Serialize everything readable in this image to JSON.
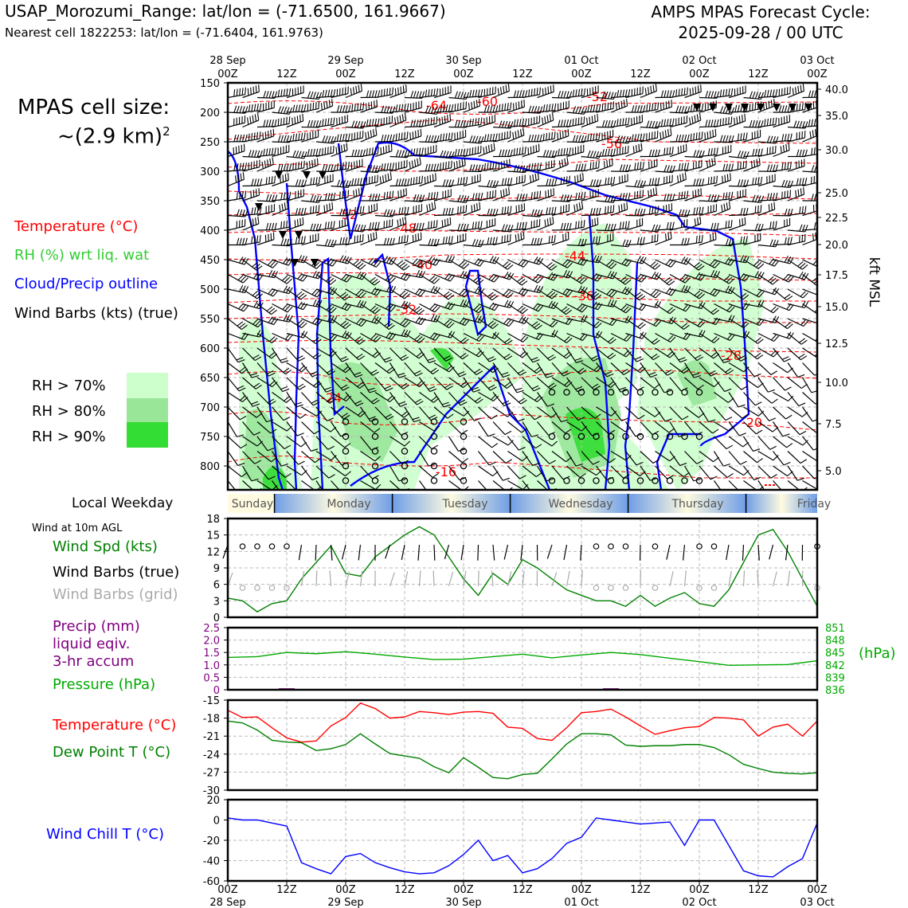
{
  "header": {
    "site": "USAP_Morozumi_Range: lat/lon = (-71.6500, 161.9667)",
    "cell": "Nearest cell 1822253: lat/lon = (-71.6404, 161.9763)",
    "cycle_line1": "AMPS MPAS Forecast Cycle:",
    "cycle_line2": "2025-09-28 / 00 UTC"
  },
  "left_panel": {
    "cell_size_line1": "MPAS cell size:",
    "cell_size_line2": "~(2.9 km)",
    "cell_size_sup": "2",
    "legend_temp": "Temperature (°C)",
    "legend_rh": "RH (%) wrt liq. wat",
    "legend_cloud": "Cloud/Precip outline",
    "legend_wind": "Wind Barbs (kts) (true)",
    "rh70": "RH > 70%",
    "rh80": "RH > 80%",
    "rh90": "RH > 90%",
    "local_weekday": "Local Weekday",
    "wind10m": "Wind at 10m AGL",
    "wind_spd": "Wind Spd (kts)",
    "wind_barbs_true": "Wind Barbs (true)",
    "wind_barbs_grid": "Wind Barbs (grid)",
    "precip1": "Precip (mm)",
    "precip2": "liquid eqiv.",
    "precip3": "3-hr accum",
    "pressure": "Pressure (hPa)",
    "temperature": "Temperature (°C)",
    "dewpoint": "Dew Point T (°C)",
    "windchill": "Wind Chill T (°C)"
  },
  "colors": {
    "temp": "#ff0000",
    "rh_legend": "#33cc33",
    "cloud": "#0000ff",
    "wind_spd": "#008000",
    "grid_barb": "#aaaaaa",
    "precip": "#800080",
    "pressure": "#00aa00",
    "dewpoint": "#008000",
    "windchill": "#0000ff",
    "rh70": "#ccffcc",
    "rh80": "#99e699",
    "rh90": "#33dd33"
  },
  "time_axis": {
    "top_dates": [
      "28 Sep",
      "",
      "29 Sep",
      "",
      "30 Sep",
      "",
      "01 Oct",
      "",
      "02 Oct",
      "",
      "03 Oct"
    ],
    "hours": [
      "00Z",
      "12Z",
      "00Z",
      "12Z",
      "00Z",
      "12Z",
      "00Z",
      "12Z",
      "00Z",
      "12Z",
      "00Z"
    ],
    "bottom_dates": [
      "28 Sep",
      "",
      "29 Sep",
      "",
      "30 Sep",
      "",
      "01 Oct",
      "",
      "02 Oct",
      "",
      "03 Oct"
    ],
    "weekdays": [
      "Sunday",
      "Monday",
      "Tuesday",
      "Wednesday",
      "Thursday",
      "Friday"
    ]
  },
  "chart_data": [
    {
      "type": "heatmap",
      "description_of_axes": "pressure vs forecast hour",
      "y_left_label_ticks": [
        "150",
        "200",
        "250",
        "300",
        "350",
        "400",
        "450",
        "500",
        "550",
        "600",
        "650",
        "700",
        "750",
        "800"
      ],
      "y_right_ticks": [
        "40.0",
        "35.0",
        "30.0",
        "25.0",
        "22.5",
        "20.0",
        "17.5",
        "15.0",
        "12.5",
        "10.0",
        "7.5",
        "5.0"
      ],
      "ylabel_right": "kft MSL",
      "temperature_contour_labels": [
        "-64",
        "-60",
        "-52",
        "-56",
        "-52",
        "-48",
        "-44",
        "-40",
        "-36",
        "-32",
        "-28",
        "-24",
        "-20",
        "-16"
      ]
    },
    {
      "type": "line",
      "name": "wind_speed",
      "ylim": [
        0,
        18
      ],
      "yticks": [
        "0",
        "3",
        "6",
        "9",
        "12",
        "15",
        "18"
      ],
      "x_hours": [
        0,
        3,
        6,
        9,
        12,
        15,
        18,
        21,
        24,
        27,
        30,
        33,
        36,
        39,
        42,
        45,
        48,
        51,
        54,
        57,
        60,
        63,
        66,
        69,
        72,
        75,
        78,
        81,
        84,
        87,
        90,
        93,
        96,
        99,
        102,
        105,
        108,
        111,
        114,
        117,
        120
      ],
      "values": [
        3.5,
        3,
        1,
        2.5,
        3,
        7,
        10,
        13,
        8,
        7.5,
        11,
        13,
        15,
        16.5,
        15,
        11,
        7,
        4,
        8,
        6,
        10.5,
        9,
        7,
        5,
        4,
        3,
        3,
        2,
        4,
        2,
        3.5,
        4.5,
        2.5,
        2,
        5,
        10,
        15,
        16,
        12,
        7,
        2
      ]
    },
    {
      "type": "line",
      "name": "precip_pressure",
      "precip_ylim": [
        0,
        2.5
      ],
      "precip_yticks": [
        "0",
        "0.5",
        "1.0",
        "1.5",
        "2.0",
        "2.5"
      ],
      "pressure_ylim": [
        836,
        851
      ],
      "pressure_yticks": [
        "836",
        "839",
        "842",
        "845",
        "848",
        "851"
      ],
      "pressure_unit": "(hPa)",
      "x_hours": [
        0,
        6,
        12,
        18,
        24,
        30,
        36,
        42,
        48,
        54,
        60,
        66,
        72,
        78,
        84,
        90,
        96,
        102,
        108,
        114,
        120
      ],
      "pressure": [
        843.8,
        844,
        845,
        844.7,
        845.2,
        844.6,
        843.9,
        843.3,
        843.4,
        844,
        844.6,
        843.7,
        844.4,
        845,
        844.5,
        843.6,
        842.8,
        841.9,
        842,
        842.1,
        843
      ],
      "precip": [
        0,
        0,
        0.06,
        0,
        0,
        0,
        0,
        0,
        0,
        0,
        0,
        0,
        0,
        0.06,
        0,
        0,
        0,
        0,
        0,
        0,
        0
      ]
    },
    {
      "type": "line",
      "name": "temperature_dewpoint",
      "ylim": [
        -30,
        -15
      ],
      "yticks": [
        "-30",
        "-27",
        "-24",
        "-21",
        "-18",
        "-15"
      ],
      "x_hours": [
        0,
        3,
        6,
        9,
        12,
        15,
        18,
        21,
        24,
        27,
        30,
        33,
        36,
        39,
        42,
        45,
        48,
        51,
        54,
        57,
        60,
        63,
        66,
        69,
        72,
        75,
        78,
        81,
        84,
        87,
        90,
        93,
        96,
        99,
        102,
        105,
        108,
        111,
        114,
        117,
        120
      ],
      "temperature": [
        -16.7,
        -17.9,
        -17.8,
        -19.6,
        -21.3,
        -22,
        -21.8,
        -19.3,
        -17.9,
        -15.5,
        -16.4,
        -18,
        -17.8,
        -16.9,
        -17.1,
        -17.4,
        -17,
        -16.9,
        -17.2,
        -19.5,
        -19.7,
        -21.4,
        -21.7,
        -19.6,
        -17.1,
        -16.9,
        -16.5,
        -17.8,
        -19.3,
        -20.7,
        -20.1,
        -19.6,
        -19.4,
        -17.9,
        -18,
        -18.3,
        -21,
        -19.5,
        -19,
        -21,
        -18.5
      ],
      "dewpoint": [
        -18.5,
        -18.8,
        -20,
        -21.7,
        -22,
        -22.1,
        -23.4,
        -23.1,
        -22.4,
        -20.6,
        -22.3,
        -23.9,
        -24.3,
        -24.7,
        -26.1,
        -27.1,
        -24.6,
        -26.2,
        -27.9,
        -28.1,
        -27.4,
        -27.2,
        -24.8,
        -22.3,
        -20.6,
        -20.6,
        -20.8,
        -22.5,
        -22.7,
        -22.6,
        -22.6,
        -22.4,
        -22.4,
        -22.9,
        -24.1,
        -25.7,
        -26.4,
        -27,
        -27.2,
        -27.3,
        -27.1
      ]
    },
    {
      "type": "line",
      "name": "wind_chill",
      "ylim": [
        -60,
        20
      ],
      "yticks": [
        "-60",
        "-40",
        "-20",
        "0",
        "20"
      ],
      "x_hours": [
        0,
        3,
        6,
        9,
        12,
        15,
        18,
        21,
        24,
        27,
        30,
        33,
        36,
        39,
        42,
        45,
        48,
        51,
        54,
        57,
        60,
        63,
        66,
        69,
        72,
        75,
        78,
        81,
        84,
        87,
        90,
        93,
        96,
        99,
        102,
        105,
        108,
        111,
        114,
        117,
        120
      ],
      "values": [
        2,
        0,
        0,
        -3,
        -6,
        -42,
        -48,
        -53,
        -36,
        -33,
        -42,
        -47,
        -51,
        -53,
        -52,
        -45,
        -34,
        -20,
        -40,
        -35,
        -52,
        -48,
        -38,
        -23,
        -17,
        2,
        0,
        -2,
        -4,
        -3,
        -2,
        -25,
        0,
        0,
        -25,
        -50,
        -55,
        -56,
        -46,
        -38,
        -3
      ]
    }
  ]
}
